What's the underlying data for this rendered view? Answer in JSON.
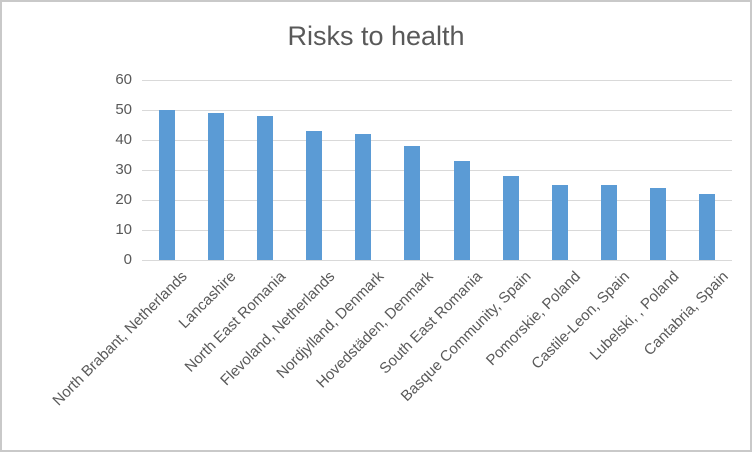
{
  "chart_data": {
    "type": "bar",
    "title": "Risks to health",
    "categories": [
      "North Brabant, Netherlands",
      "Lancashire",
      "North East Romania",
      "Flevoland, Netherlands",
      "Nordjylland, Denmark",
      "Hovedstäden, Denmark",
      "South East Romania",
      "Basque Community, Spain",
      "Pomorskie, Poland",
      "Castile-Leon, Spain",
      "Lubelski, , Poland",
      "Cantabria, Spain"
    ],
    "values": [
      50,
      49,
      48,
      43,
      42,
      38,
      33,
      28,
      25,
      25,
      24,
      22
    ],
    "xlabel": "",
    "ylabel": "",
    "ylim": [
      0,
      60
    ],
    "yticks": [
      0,
      10,
      20,
      30,
      40,
      50,
      60
    ],
    "grid": true,
    "legend_position": "none",
    "bar_color": "#5B9BD5",
    "gridline_color": "#D9D9D9",
    "axis_text_color": "#595959",
    "title_color": "#595959",
    "frame_border_color": "#C9C9C9",
    "background": "#FFFFFF"
  }
}
